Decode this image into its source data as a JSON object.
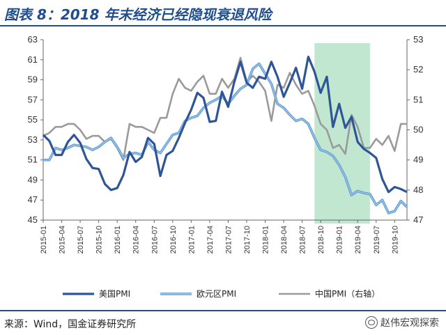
{
  "header": {
    "title": "图表 8：2018 年末经济已经隐现衰退风险"
  },
  "footer": {
    "source": "来源：Wind，国金证券研究所",
    "watermark": "赵伟宏观探索",
    "watermark_icon": "wechat-icon"
  },
  "colors": {
    "us": "#2e5597",
    "eurozone": "#8fc0ea",
    "china": "#9a9a9a",
    "highlight": "#b6e3c8",
    "title": "#1f4e8c"
  },
  "chart_data": {
    "type": "line",
    "x": [
      "2015-01",
      "2015-02",
      "2015-03",
      "2015-04",
      "2015-05",
      "2015-06",
      "2015-07",
      "2015-08",
      "2015-09",
      "2015-10",
      "2015-11",
      "2015-12",
      "2016-01",
      "2016-02",
      "2016-03",
      "2016-04",
      "2016-05",
      "2016-06",
      "2016-07",
      "2016-08",
      "2016-09",
      "2016-10",
      "2016-11",
      "2016-12",
      "2017-01",
      "2017-02",
      "2017-03",
      "2017-04",
      "2017-05",
      "2017-06",
      "2017-07",
      "2017-08",
      "2017-09",
      "2017-10",
      "2017-11",
      "2017-12",
      "2018-01",
      "2018-02",
      "2018-03",
      "2018-04",
      "2018-05",
      "2018-06",
      "2018-07",
      "2018-08",
      "2018-09",
      "2018-10",
      "2018-11",
      "2018-12",
      "2019-01",
      "2019-02",
      "2019-03",
      "2019-04",
      "2019-05",
      "2019-06",
      "2019-07",
      "2019-08",
      "2019-09",
      "2019-10",
      "2019-11",
      "2019-12"
    ],
    "x_tick_labels": [
      "2015-01",
      "2015-04",
      "2015-07",
      "2015-10",
      "2016-01",
      "2016-04",
      "2016-07",
      "2016-10",
      "2017-01",
      "2017-04",
      "2017-07",
      "2017-10",
      "2018-01",
      "2018-04",
      "2018-07",
      "2018-10",
      "2019-01",
      "2019-04",
      "2019-07",
      "2019-10"
    ],
    "ylim_left": [
      45,
      63
    ],
    "y_ticks_left": [
      "45",
      "47",
      "49",
      "51",
      "53",
      "55",
      "57",
      "59",
      "61",
      "63"
    ],
    "ylim_right": [
      47,
      53
    ],
    "y_ticks_right": [
      "47",
      "48",
      "49",
      "50",
      "51",
      "52",
      "53"
    ],
    "highlight_range": [
      "2018-09",
      "2019-06"
    ],
    "series": [
      {
        "name": "美国PMI",
        "axis": "left",
        "values": [
          53.5,
          52.9,
          51.5,
          51.5,
          52.8,
          53.5,
          52.7,
          51.1,
          50.2,
          50.1,
          48.6,
          48.0,
          48.2,
          49.5,
          51.8,
          50.8,
          51.3,
          53.2,
          52.6,
          49.4,
          51.5,
          51.9,
          53.2,
          54.7,
          56.0,
          57.7,
          57.2,
          54.8,
          54.9,
          57.8,
          56.3,
          58.8,
          60.8,
          58.7,
          58.2,
          59.3,
          59.1,
          60.8,
          59.3,
          57.3,
          58.7,
          60.2,
          58.1,
          61.3,
          59.8,
          57.7,
          59.3,
          54.3,
          56.6,
          54.2,
          55.3,
          52.8,
          52.1,
          51.7,
          51.2,
          49.1,
          47.8,
          48.3,
          48.1,
          47.8
        ]
      },
      {
        "name": "欧元区PMI",
        "axis": "left",
        "values": [
          51.0,
          51.0,
          52.2,
          52.0,
          52.2,
          52.5,
          52.4,
          52.3,
          52.0,
          52.3,
          52.8,
          53.2,
          52.3,
          51.2,
          51.6,
          51.7,
          51.5,
          52.8,
          52.0,
          51.7,
          52.6,
          53.5,
          53.7,
          54.9,
          55.2,
          55.4,
          56.2,
          56.7,
          57.0,
          57.4,
          56.6,
          57.4,
          58.1,
          58.5,
          60.1,
          60.6,
          59.6,
          58.6,
          56.6,
          56.2,
          55.5,
          54.9,
          55.1,
          54.6,
          53.2,
          52.0,
          51.8,
          51.4,
          50.5,
          49.3,
          47.5,
          47.9,
          47.7,
          47.6,
          46.5,
          47.0,
          45.7,
          45.9,
          46.9,
          46.3
        ]
      },
      {
        "name": "中国PMI（右轴）",
        "axis": "right",
        "values": [
          49.8,
          49.9,
          50.1,
          50.1,
          50.2,
          50.2,
          50.0,
          49.7,
          49.8,
          49.8,
          49.6,
          49.7,
          49.4,
          49.0,
          50.2,
          50.1,
          50.1,
          50.0,
          49.9,
          50.4,
          50.4,
          51.2,
          51.7,
          51.4,
          51.3,
          51.6,
          51.8,
          51.2,
          51.2,
          51.7,
          51.4,
          51.7,
          52.4,
          51.6,
          51.8,
          51.6,
          51.3,
          50.3,
          51.5,
          51.4,
          51.9,
          51.5,
          51.2,
          51.3,
          50.8,
          50.2,
          50.0,
          49.4,
          49.5,
          49.2,
          50.5,
          50.1,
          49.4,
          49.4,
          49.7,
          49.5,
          49.8,
          49.3,
          50.2,
          50.2
        ]
      }
    ]
  }
}
